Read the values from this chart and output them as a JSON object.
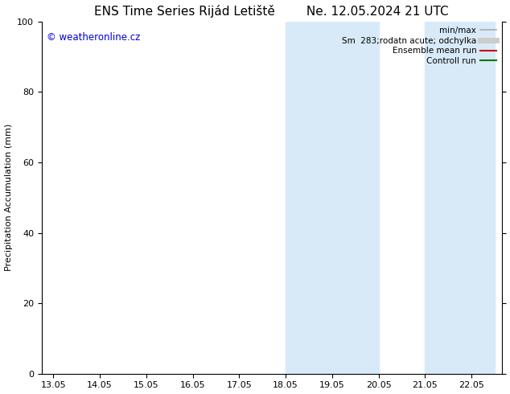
{
  "title": "ENS Time Series Rijád Letiště        Ne. 12.05.2024 21 UTC",
  "ylabel": "Precipitation Accumulation (mm)",
  "xlim_dates": [
    "13.05",
    "14.05",
    "15.05",
    "16.05",
    "17.05",
    "18.05",
    "19.05",
    "20.05",
    "21.05",
    "22.05"
  ],
  "ylim": [
    0,
    100
  ],
  "yticks": [
    0,
    20,
    40,
    60,
    80,
    100
  ],
  "background_color": "#ffffff",
  "plot_bg_color": "#ffffff",
  "watermark_text": "© weatheronline.cz",
  "watermark_color": "#0000cc",
  "shaded_regions": [
    {
      "x_start": 18.05,
      "x_end": 20.05,
      "color": "#d8eaf8",
      "alpha": 1.0
    },
    {
      "x_start": 21.05,
      "x_end": 22.55,
      "color": "#d8eaf8",
      "alpha": 1.0
    }
  ],
  "legend_entries": [
    {
      "label": "min/max",
      "color": "#aaaaaa",
      "lw": 1.2,
      "linestyle": "-"
    },
    {
      "label": "Sm  283;rodatn acute; odchylka",
      "color": "#cccccc",
      "lw": 5,
      "linestyle": "-"
    },
    {
      "label": "Ensemble mean run",
      "color": "#cc0000",
      "lw": 1.5,
      "linestyle": "-"
    },
    {
      "label": "Controll run",
      "color": "#007700",
      "lw": 1.5,
      "linestyle": "-"
    }
  ],
  "x_numeric": [
    13.05,
    14.05,
    15.05,
    16.05,
    17.05,
    18.05,
    19.05,
    20.05,
    21.05,
    22.05
  ],
  "xlim": [
    12.8,
    22.7
  ],
  "tick_fontsize": 8,
  "title_fontsize": 11,
  "label_fontsize": 8
}
